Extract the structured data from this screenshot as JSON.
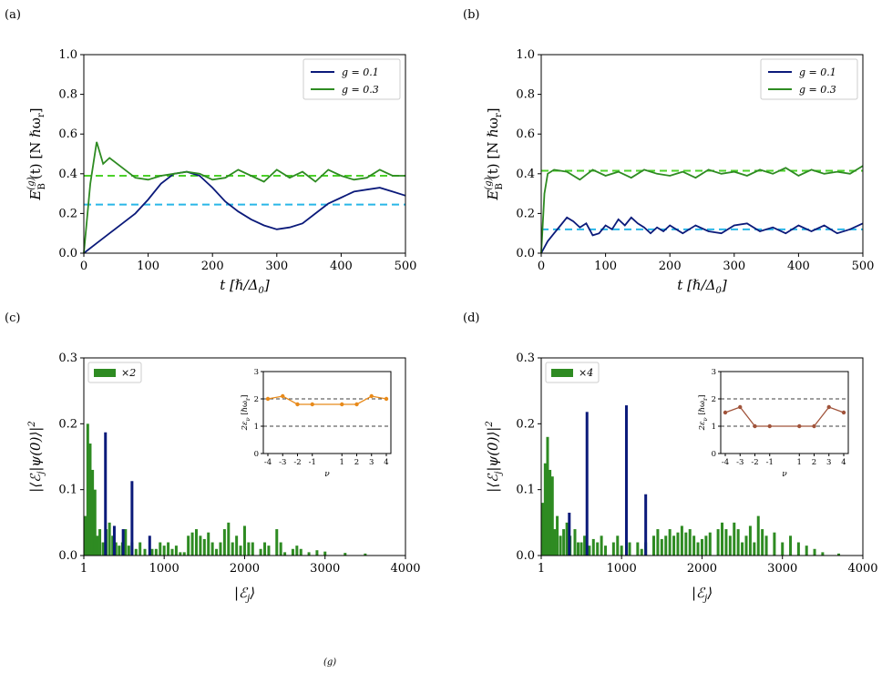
{
  "chart_data": [
    {
      "id": "a",
      "panel_label": "(a)",
      "type": "line",
      "xlabel": "t [ħ/Δ₀]",
      "ylabel": "E_B^(g)(t)  [N ħω_r]",
      "xlim": [
        0,
        500
      ],
      "ylim": [
        0,
        1.0
      ],
      "xticks": [
        "0",
        "100",
        "200",
        "300",
        "400",
        "500"
      ],
      "yticks": [
        "0.0",
        "0.2",
        "0.4",
        "0.6",
        "0.8",
        "1.0"
      ],
      "legend": "top-right",
      "series": [
        {
          "name": "g = 0.1",
          "color": "#0b1a7a",
          "x": [
            0,
            20,
            40,
            60,
            80,
            100,
            120,
            140,
            160,
            180,
            200,
            220,
            240,
            260,
            280,
            300,
            320,
            340,
            360,
            380,
            400,
            420,
            440,
            460,
            480,
            500
          ],
          "y": [
            0.0,
            0.05,
            0.1,
            0.15,
            0.2,
            0.27,
            0.35,
            0.4,
            0.41,
            0.39,
            0.33,
            0.26,
            0.21,
            0.17,
            0.14,
            0.12,
            0.13,
            0.15,
            0.2,
            0.25,
            0.28,
            0.31,
            0.32,
            0.33,
            0.31,
            0.29
          ]
        },
        {
          "name": "g = 0.3",
          "color": "#2e8b22",
          "x": [
            0,
            10,
            20,
            30,
            40,
            60,
            80,
            100,
            120,
            140,
            160,
            180,
            200,
            220,
            240,
            260,
            280,
            300,
            320,
            340,
            360,
            380,
            400,
            420,
            440,
            460,
            480,
            500
          ],
          "y": [
            0.0,
            0.35,
            0.56,
            0.45,
            0.48,
            0.43,
            0.38,
            0.37,
            0.39,
            0.4,
            0.41,
            0.4,
            0.37,
            0.38,
            0.42,
            0.39,
            0.36,
            0.42,
            0.38,
            0.41,
            0.36,
            0.42,
            0.39,
            0.37,
            0.38,
            0.42,
            0.39,
            0.39
          ]
        }
      ],
      "reference_lines": [
        {
          "y": 0.245,
          "color": "#29b6e8",
          "style": "dashed"
        },
        {
          "y": 0.39,
          "color": "#4cd12a",
          "style": "dashed"
        }
      ]
    },
    {
      "id": "b",
      "panel_label": "(b)",
      "type": "line",
      "xlabel": "t [ħ/Δ₀]",
      "ylabel": "E_B^(g)(t)  [N ħω_r]",
      "xlim": [
        0,
        500
      ],
      "ylim": [
        0,
        1.0
      ],
      "xticks": [
        "0",
        "100",
        "200",
        "300",
        "400",
        "500"
      ],
      "yticks": [
        "0.0",
        "0.2",
        "0.4",
        "0.6",
        "0.8",
        "1.0"
      ],
      "legend": "top-right",
      "series": [
        {
          "name": "g = 0.1",
          "color": "#0b1a7a",
          "x": [
            0,
            10,
            20,
            30,
            40,
            50,
            60,
            70,
            80,
            90,
            100,
            110,
            120,
            130,
            140,
            150,
            160,
            170,
            180,
            190,
            200,
            220,
            240,
            260,
            280,
            300,
            320,
            340,
            360,
            380,
            400,
            420,
            440,
            460,
            480,
            500
          ],
          "y": [
            0.0,
            0.06,
            0.1,
            0.14,
            0.18,
            0.16,
            0.13,
            0.15,
            0.09,
            0.1,
            0.14,
            0.12,
            0.17,
            0.14,
            0.18,
            0.15,
            0.13,
            0.1,
            0.13,
            0.11,
            0.14,
            0.1,
            0.14,
            0.11,
            0.1,
            0.14,
            0.15,
            0.11,
            0.13,
            0.1,
            0.14,
            0.11,
            0.14,
            0.1,
            0.12,
            0.15
          ]
        },
        {
          "name": "g = 0.3",
          "color": "#2e8b22",
          "x": [
            0,
            5,
            10,
            20,
            40,
            60,
            80,
            100,
            120,
            140,
            160,
            180,
            200,
            220,
            240,
            260,
            280,
            300,
            320,
            340,
            360,
            380,
            400,
            420,
            440,
            460,
            480,
            500
          ],
          "y": [
            0.0,
            0.3,
            0.4,
            0.42,
            0.41,
            0.37,
            0.42,
            0.39,
            0.41,
            0.38,
            0.42,
            0.4,
            0.39,
            0.41,
            0.38,
            0.42,
            0.4,
            0.41,
            0.39,
            0.42,
            0.4,
            0.43,
            0.39,
            0.42,
            0.4,
            0.41,
            0.4,
            0.44
          ]
        }
      ],
      "reference_lines": [
        {
          "y": 0.12,
          "color": "#29b6e8",
          "style": "dashed"
        },
        {
          "y": 0.415,
          "color": "#4cd12a",
          "style": "dashed"
        }
      ]
    },
    {
      "id": "c",
      "panel_label": "(c)",
      "type": "bar",
      "xlabel": "|ℰ_j⟩",
      "ylabel": "|⟨ℰ_j|ψ(0)⟩|²",
      "xlim": [
        1,
        4000
      ],
      "ylim": [
        0,
        0.3
      ],
      "xticks": [
        "1",
        "1000",
        "2000",
        "3000",
        "4000"
      ],
      "yticks": [
        "0.0",
        "0.1",
        "0.2",
        "0.3"
      ],
      "legend": "top-left",
      "legend_label": "×2",
      "series": [
        {
          "name": "×2",
          "color": "#2e8b22",
          "x": [
            20,
            50,
            80,
            110,
            140,
            170,
            200,
            240,
            280,
            320,
            360,
            400,
            440,
            480,
            520,
            560,
            600,
            650,
            700,
            760,
            850,
            900,
            950,
            1000,
            1050,
            1100,
            1150,
            1200,
            1250,
            1300,
            1350,
            1400,
            1450,
            1500,
            1550,
            1600,
            1650,
            1700,
            1750,
            1800,
            1850,
            1900,
            1950,
            2000,
            2050,
            2100,
            2200,
            2250,
            2300,
            2400,
            2450,
            2500,
            2600,
            2650,
            2700,
            2800,
            2900,
            3000,
            3250,
            3500
          ],
          "y": [
            0.06,
            0.2,
            0.17,
            0.13,
            0.1,
            0.03,
            0.04,
            0.02,
            0.04,
            0.05,
            0.03,
            0.02,
            0.015,
            0.02,
            0.04,
            0.015,
            0.02,
            0.01,
            0.02,
            0.01,
            0.01,
            0.01,
            0.02,
            0.015,
            0.02,
            0.01,
            0.015,
            0.005,
            0.005,
            0.03,
            0.035,
            0.04,
            0.03,
            0.025,
            0.035,
            0.02,
            0.01,
            0.02,
            0.04,
            0.05,
            0.02,
            0.03,
            0.015,
            0.045,
            0.02,
            0.02,
            0.01,
            0.02,
            0.015,
            0.04,
            0.02,
            0.005,
            0.01,
            0.015,
            0.01,
            0.005,
            0.008,
            0.006,
            0.004,
            0.003
          ]
        },
        {
          "name": "g = 0.1",
          "color": "#0b1a7a",
          "x": [
            270,
            380,
            490,
            600,
            820
          ],
          "y": [
            0.187,
            0.045,
            0.04,
            0.113,
            0.03
          ]
        }
      ],
      "inset": {
        "xlabel": "ν",
        "ylabel": "2ε_ν [ħω_r]",
        "xlim": [
          -4,
          4
        ],
        "ylim": [
          0,
          3
        ],
        "xticks": [
          "-4",
          "-3",
          "-2",
          "-1",
          "1",
          "2",
          "3",
          "4"
        ],
        "yticks": [
          "0",
          "1",
          "2",
          "3"
        ],
        "hlines": [
          1,
          2
        ],
        "series": {
          "color": "#e88a1a",
          "x": [
            -4,
            -3,
            -2,
            -1,
            1,
            2,
            3,
            4
          ],
          "y": [
            2.0,
            2.1,
            1.8,
            1.8,
            1.8,
            1.8,
            2.1,
            2.0
          ]
        }
      }
    },
    {
      "id": "d",
      "panel_label": "(d)",
      "type": "bar",
      "xlabel": "|ℰ_j⟩",
      "ylabel": "|⟨ℰ_j|ψ(0)⟩|²",
      "xlim": [
        1,
        4000
      ],
      "ylim": [
        0,
        0.3
      ],
      "xticks": [
        "1",
        "1000",
        "2000",
        "3000",
        "4000"
      ],
      "yticks": [
        "0.0",
        "0.1",
        "0.2",
        "0.3"
      ],
      "legend": "top-left",
      "legend_label": "×4",
      "series": [
        {
          "name": "×4",
          "color": "#2e8b22",
          "x": [
            20,
            50,
            80,
            110,
            140,
            170,
            200,
            240,
            280,
            320,
            360,
            420,
            460,
            500,
            540,
            600,
            650,
            700,
            750,
            800,
            900,
            950,
            1000,
            1100,
            1200,
            1250,
            1300,
            1400,
            1450,
            1500,
            1550,
            1600,
            1650,
            1700,
            1750,
            1800,
            1850,
            1900,
            1950,
            2000,
            2050,
            2100,
            2200,
            2250,
            2300,
            2350,
            2400,
            2450,
            2500,
            2550,
            2600,
            2650,
            2700,
            2750,
            2800,
            2900,
            3000,
            3100,
            3200,
            3300,
            3400,
            3500,
            3700
          ],
          "y": [
            0.08,
            0.14,
            0.18,
            0.13,
            0.12,
            0.04,
            0.06,
            0.03,
            0.04,
            0.05,
            0.03,
            0.04,
            0.02,
            0.02,
            0.03,
            0.015,
            0.025,
            0.02,
            0.03,
            0.015,
            0.02,
            0.03,
            0.015,
            0.02,
            0.02,
            0.01,
            0.02,
            0.03,
            0.04,
            0.025,
            0.03,
            0.04,
            0.03,
            0.035,
            0.045,
            0.035,
            0.04,
            0.03,
            0.02,
            0.025,
            0.03,
            0.035,
            0.04,
            0.05,
            0.04,
            0.03,
            0.05,
            0.04,
            0.02,
            0.03,
            0.045,
            0.02,
            0.06,
            0.04,
            0.03,
            0.035,
            0.02,
            0.03,
            0.02,
            0.015,
            0.01,
            0.005,
            0.003
          ]
        },
        {
          "name": "g = 0.1",
          "color": "#0b1a7a",
          "x": [
            350,
            570,
            1060,
            1300
          ],
          "y": [
            0.065,
            0.218,
            0.228,
            0.093
          ]
        }
      ],
      "inset": {
        "xlabel": "ν",
        "ylabel": "2ε_ν [ħω_r]",
        "xlim": [
          -4,
          4
        ],
        "ylim": [
          0,
          3
        ],
        "xticks": [
          "-4",
          "-3",
          "-2",
          "-1",
          "1",
          "2",
          "3",
          "4"
        ],
        "yticks": [
          "0",
          "1",
          "2",
          "3"
        ],
        "hlines": [
          1,
          2
        ],
        "series": {
          "color": "#a0533a",
          "x": [
            -4,
            -3,
            -2,
            -1,
            1,
            2,
            3,
            4
          ],
          "y": [
            1.5,
            1.7,
            1.0,
            1.0,
            1.0,
            1.0,
            1.7,
            1.5
          ]
        }
      }
    }
  ],
  "caption_fragment": "(g)"
}
